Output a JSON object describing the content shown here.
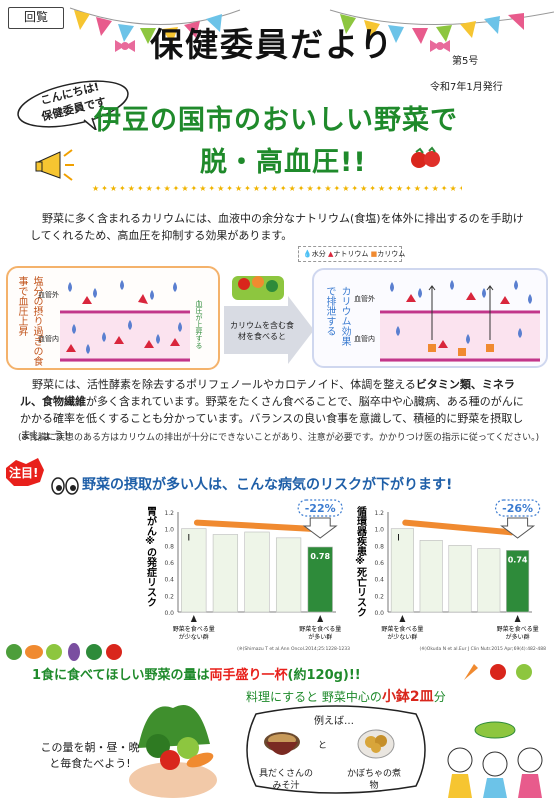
{
  "stamp": "回覧",
  "title": "保健委員だより",
  "issue": "第5号",
  "date": "令和7年1月発行",
  "bubble": {
    "line1": "こんにちは!",
    "line2": "保健委員です"
  },
  "headline": {
    "line1": "伊豆の国市のおいしい野菜で",
    "line2": "脱・高血圧!!"
  },
  "intro": "野菜に多く含まれるカリウムには、血液中の余分なナトリウム(食塩)を体外に排出するのを手助けしてくれるため、高血圧を抑制する効果があります。",
  "legend": {
    "water": "水分",
    "sodium": "ナトリウム",
    "potassium": "カリウム"
  },
  "diagram": {
    "left_vertical": "塩分の摂り過ぎの食事で血圧上昇",
    "left_outside": "血管外",
    "left_inside": "血管内",
    "left_arrow": "血圧が上昇する",
    "middle": "カリウムを含む食材を食べると",
    "right_vertical": "カリウム効果で排泄する",
    "right_outside": "血管外",
    "right_inside": "血管内"
  },
  "body": {
    "pre": "野菜には、活性酵素を除去するポリフェノールやカロテノイド、体調を整える",
    "bold": "ビタミン類、ミネラル、食物繊維",
    "post": "が多く含まれています。野菜をたくさん食べることで、脳卒中や心臓病、ある種のがんにかかる確率を低くすることも分かっています。バランスの良い食事を意識して、積極的に野菜を摂取しましょう!"
  },
  "note": "(※腎臓に疾患のある方はカリウムの排出が十分にできないことがあり、注意が必要です。かかりつけ医の指示に従ってください。)",
  "attention": "注目!",
  "risk_headline": "野菜の摂取が多い人は、こんな病気のリスクが下がります!",
  "chart_data": [
    {
      "type": "bar",
      "ylabel": "胃がん※の発症リスク",
      "ylim": [
        0,
        1.2
      ],
      "yticks": [
        "0.0",
        "0.2",
        "0.4",
        "0.6",
        "0.8",
        "1.0",
        "1.2"
      ],
      "values": [
        1.0,
        0.93,
        0.96,
        0.89,
        0.78
      ],
      "marker": "Ⅰ",
      "value_label": "0.78",
      "badge": "-22%",
      "x_left": "野菜を食べる量が少ない群",
      "x_right": "野菜を食べる量が多い群",
      "citation": "(※)Shimazu T et al.Ann Oncol.2014;25:1228-1233",
      "colors": {
        "bar": "#eef5e8",
        "last": "#2e8b3a",
        "trend": "#f08a30"
      }
    },
    {
      "type": "bar",
      "ylabel": "循環器疾患※死亡リスク",
      "ylim": [
        0,
        1.2
      ],
      "yticks": [
        "0.0",
        "0.2",
        "0.4",
        "0.6",
        "0.8",
        "1.0",
        "1.2"
      ],
      "values": [
        1.0,
        0.86,
        0.8,
        0.76,
        0.74
      ],
      "marker": "Ⅰ",
      "value_label": "0.74",
      "badge": "-26%",
      "x_left": "野菜を食べる量が少ない群",
      "x_right": "野菜を食べる量が多い群",
      "citation": "(※)Okuda N et al.Eur J Clin Nutr.2015 Apr;69(4):482-488",
      "colors": {
        "bar": "#eef5e8",
        "last": "#2e8b3a",
        "trend": "#f08a30"
      }
    }
  ],
  "serving": {
    "pre": "1食に食べてほしい野菜の量は",
    "emph": "両手盛り一杯",
    "post": "(約120g)!!"
  },
  "serving_sub": {
    "pre": "料理にすると 野菜中心の",
    "emph": "小鉢2皿",
    "post": "分"
  },
  "examples": {
    "lead": "例えば…",
    "and": "と",
    "item1": "具だくさんのみそ汁",
    "item2": "かぼちゃの煮物"
  },
  "eat_text": "この量を朝・昼・晩と毎食たべよう!"
}
